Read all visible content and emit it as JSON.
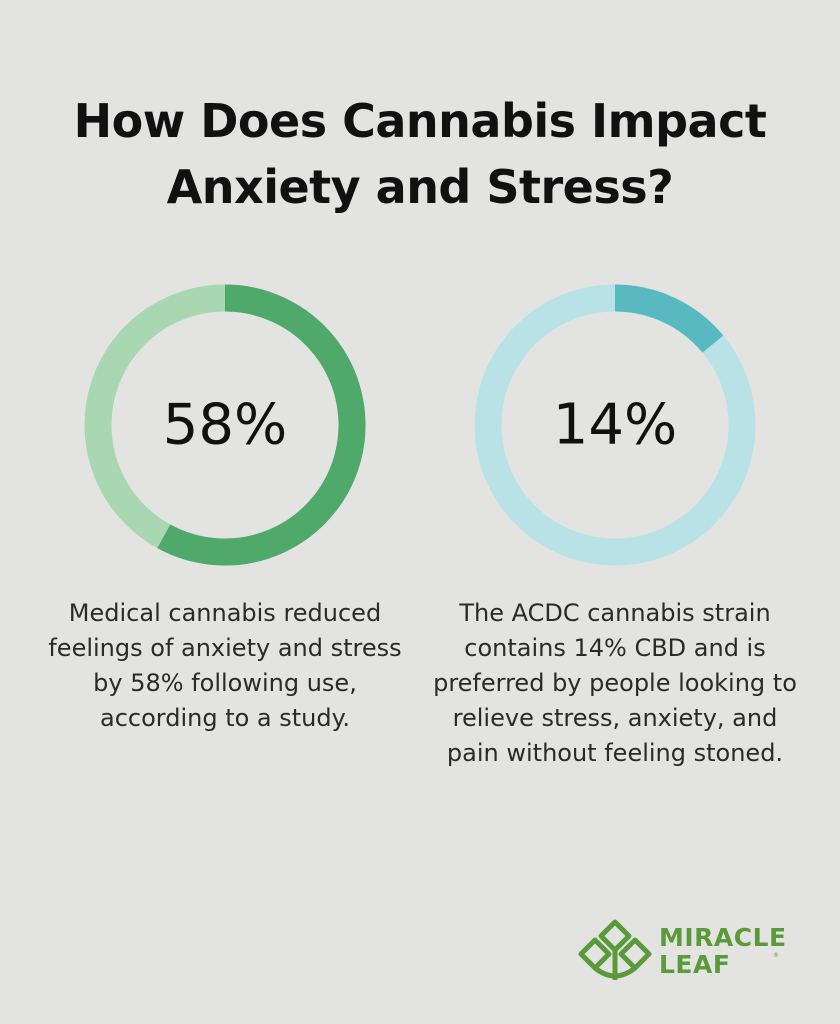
{
  "title": {
    "line1": "How Does Cannabis Impact",
    "line2": "Anxiety and Stress?"
  },
  "chart_data": [
    {
      "type": "pie",
      "variant": "donut",
      "value": 58,
      "max": 100,
      "center_label": "58%",
      "caption": "Medical cannabis reduced feelings of anxiety and stress by 58% following use, according to a study.",
      "colors": {
        "filled": "#4ea96b",
        "track": "#a9d7b2"
      }
    },
    {
      "type": "pie",
      "variant": "donut",
      "value": 14,
      "max": 100,
      "center_label": "14%",
      "caption": "The ACDC cannabis strain contains 14% CBD and is preferred by people looking to relieve stress, anxiety, and pain without feeling stoned.",
      "colors": {
        "filled": "#59b9c0",
        "track": "#b9e2e6"
      }
    }
  ],
  "logo": {
    "line1": "MIRACLE",
    "line2": "LEAF",
    "registered": "®",
    "color": "#5a9a3a"
  }
}
